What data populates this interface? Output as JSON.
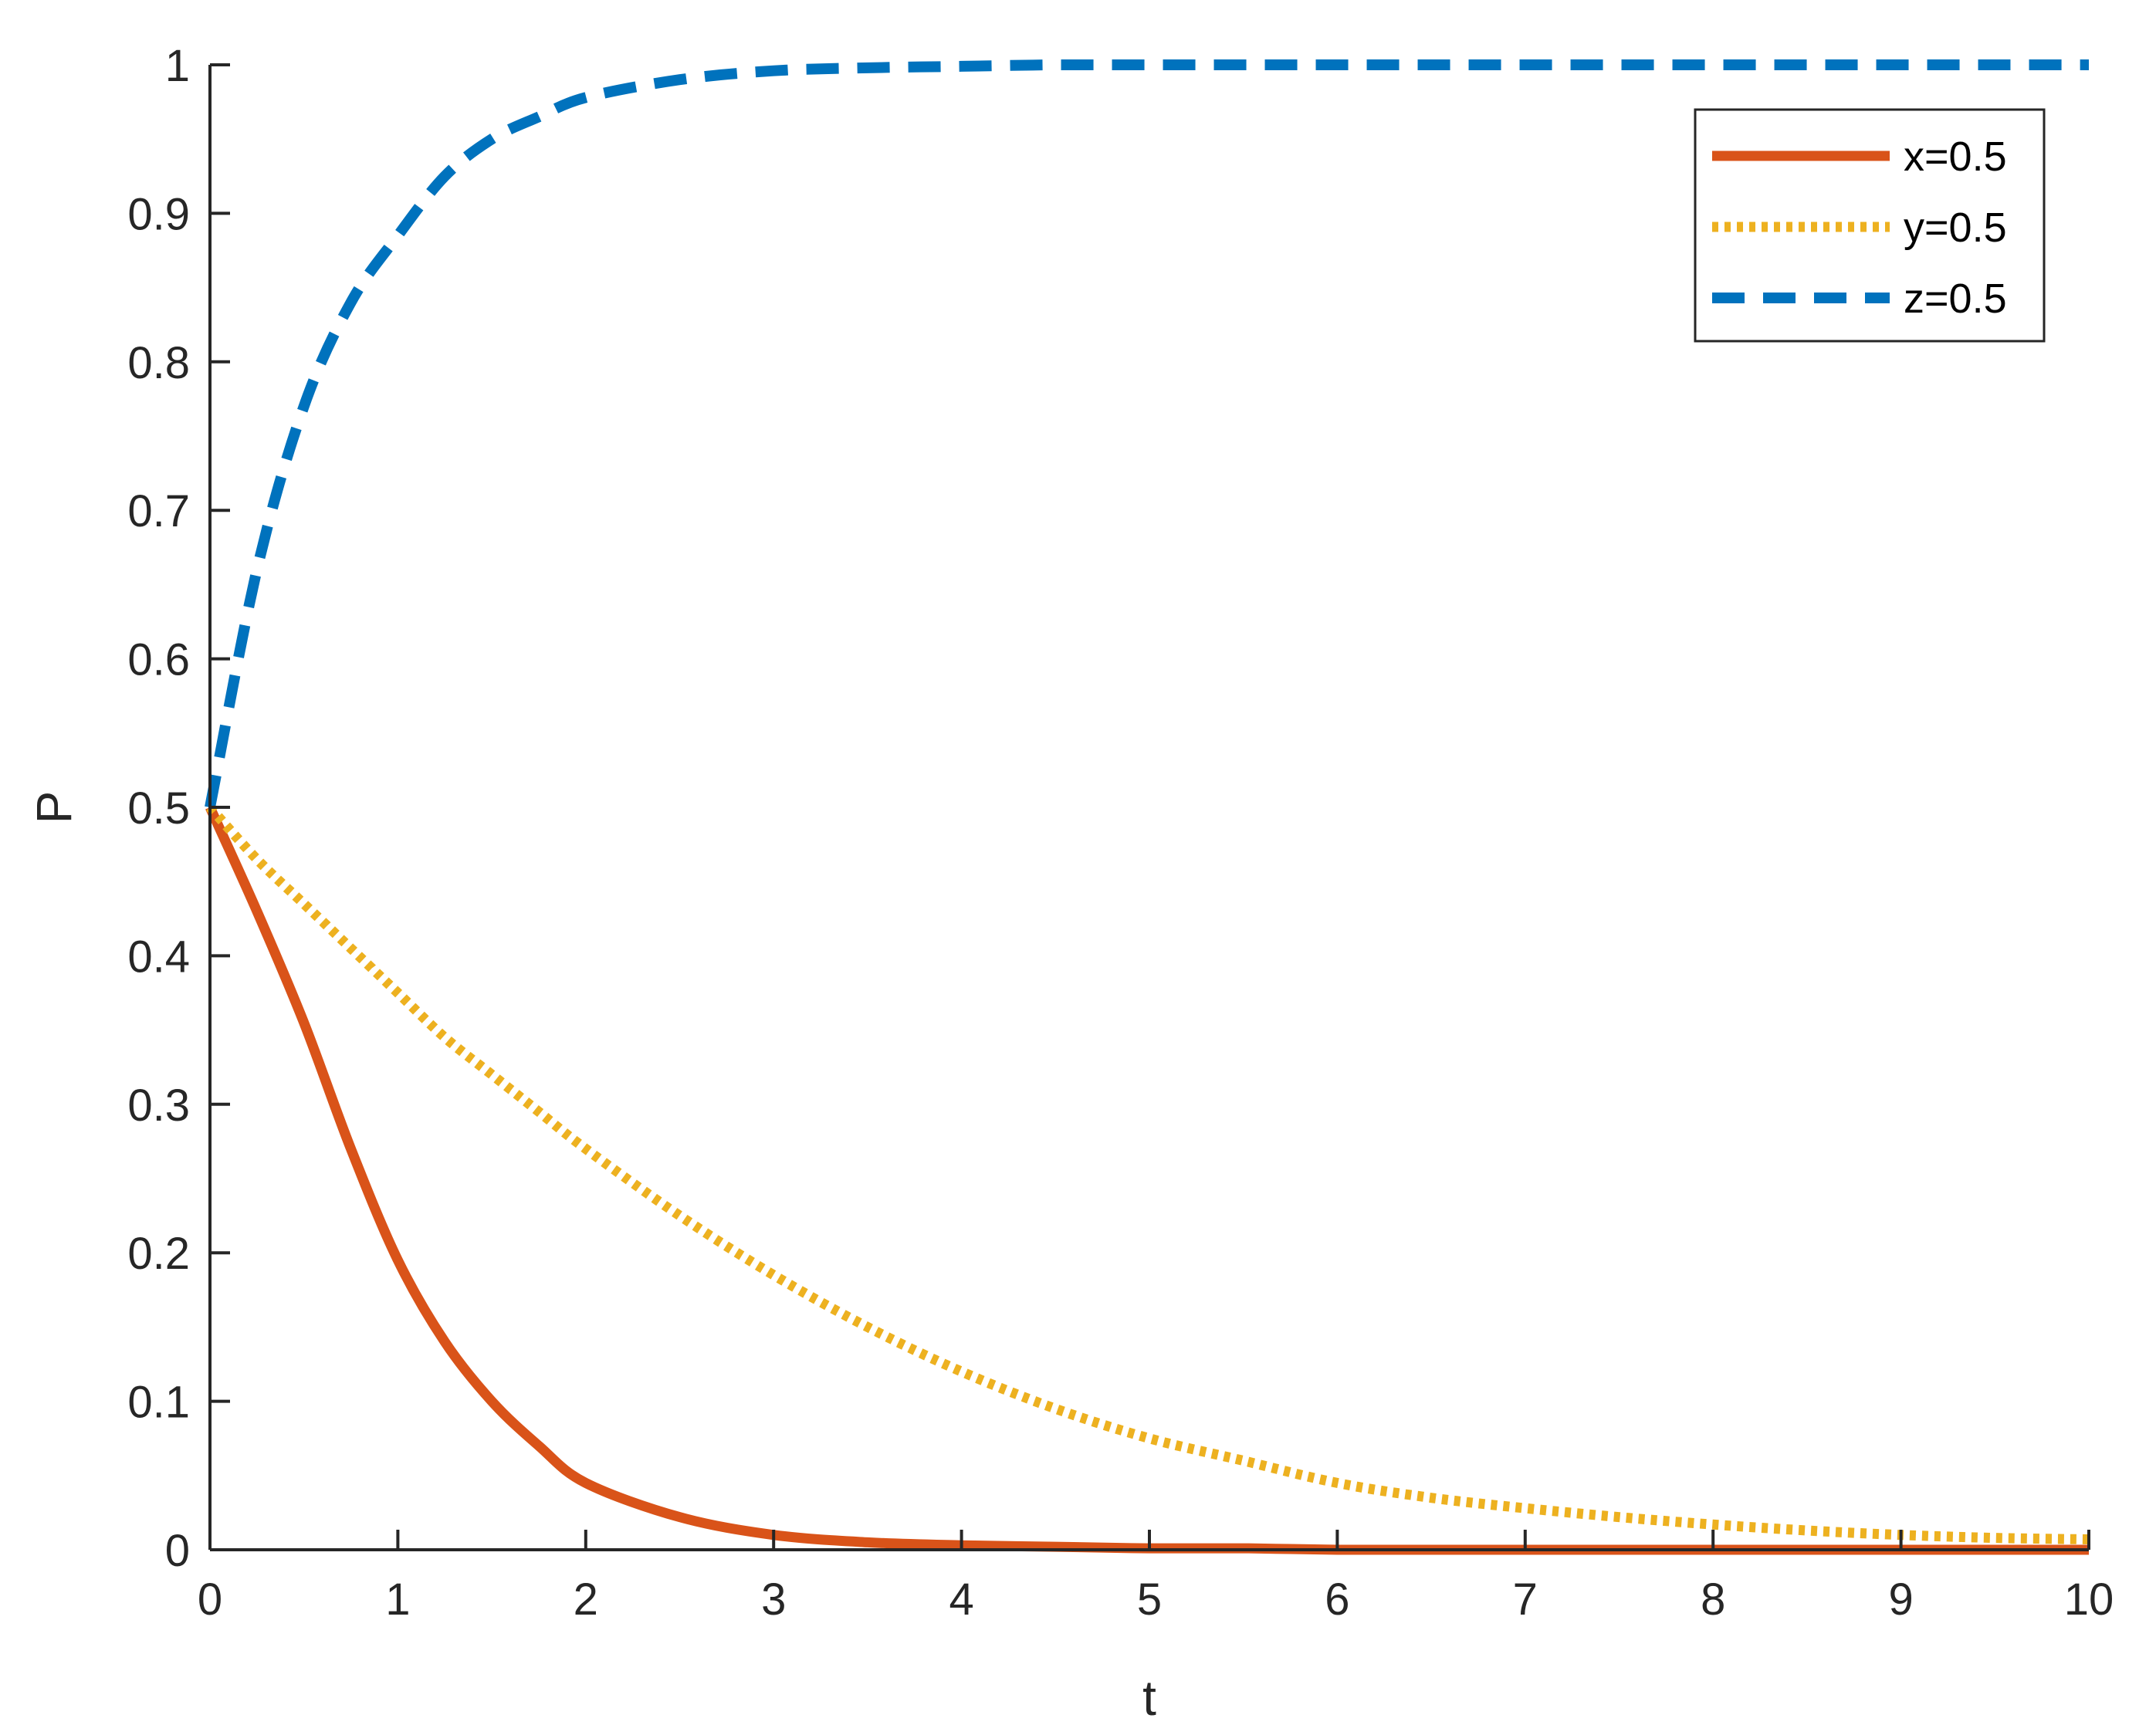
{
  "chart_data": {
    "type": "line",
    "xlabel": "t",
    "ylabel": "P",
    "xlim": [
      0,
      10
    ],
    "ylim": [
      0,
      1
    ],
    "xticks": [
      0,
      1,
      2,
      3,
      4,
      5,
      6,
      7,
      8,
      9,
      10
    ],
    "xtick_labels": [
      "0",
      "1",
      "2",
      "3",
      "4",
      "5",
      "6",
      "7",
      "8",
      "9",
      "10"
    ],
    "yticks": [
      0,
      0.1,
      0.2,
      0.3,
      0.4,
      0.5,
      0.6,
      0.7,
      0.8,
      0.9,
      1
    ],
    "ytick_labels": [
      "0",
      "0.1",
      "0.2",
      "0.3",
      "0.4",
      "0.5",
      "0.6",
      "0.7",
      "0.8",
      "0.9",
      "1"
    ],
    "grid": false,
    "legend_position": "top-right",
    "x": [
      0,
      0.25,
      0.5,
      0.75,
      1,
      1.25,
      1.5,
      1.75,
      2,
      2.5,
      3,
      3.5,
      4,
      4.5,
      5,
      5.5,
      6,
      6.5,
      7,
      7.5,
      8,
      8.5,
      9,
      9.5,
      10
    ],
    "series": [
      {
        "name": "x=0.5",
        "color": "#D95319",
        "line_style": "solid",
        "values": [
          0.5,
          0.43,
          0.355,
          0.27,
          0.195,
          0.14,
          0.1,
          0.07,
          0.045,
          0.022,
          0.01,
          0.005,
          0.003,
          0.002,
          0.001,
          0.001,
          0.0,
          0.0,
          0.0,
          0.0,
          0.0,
          0.0,
          0.0,
          0.0,
          0.0
        ]
      },
      {
        "name": "y=0.5",
        "color": "#EDB120",
        "line_style": "dotted",
        "values": [
          0.5,
          0.465,
          0.435,
          0.405,
          0.375,
          0.345,
          0.32,
          0.295,
          0.27,
          0.225,
          0.185,
          0.15,
          0.12,
          0.095,
          0.075,
          0.06,
          0.045,
          0.035,
          0.028,
          0.022,
          0.017,
          0.013,
          0.01,
          0.008,
          0.007
        ]
      },
      {
        "name": "z=0.5",
        "color": "#0072BD",
        "line_style": "dashed",
        "values": [
          0.5,
          0.66,
          0.77,
          0.84,
          0.885,
          0.925,
          0.95,
          0.965,
          0.978,
          0.99,
          0.996,
          0.998,
          0.999,
          1.0,
          1.0,
          1.0,
          1.0,
          1.0,
          1.0,
          1.0,
          1.0,
          1.0,
          1.0,
          1.0,
          1.0
        ]
      }
    ]
  }
}
